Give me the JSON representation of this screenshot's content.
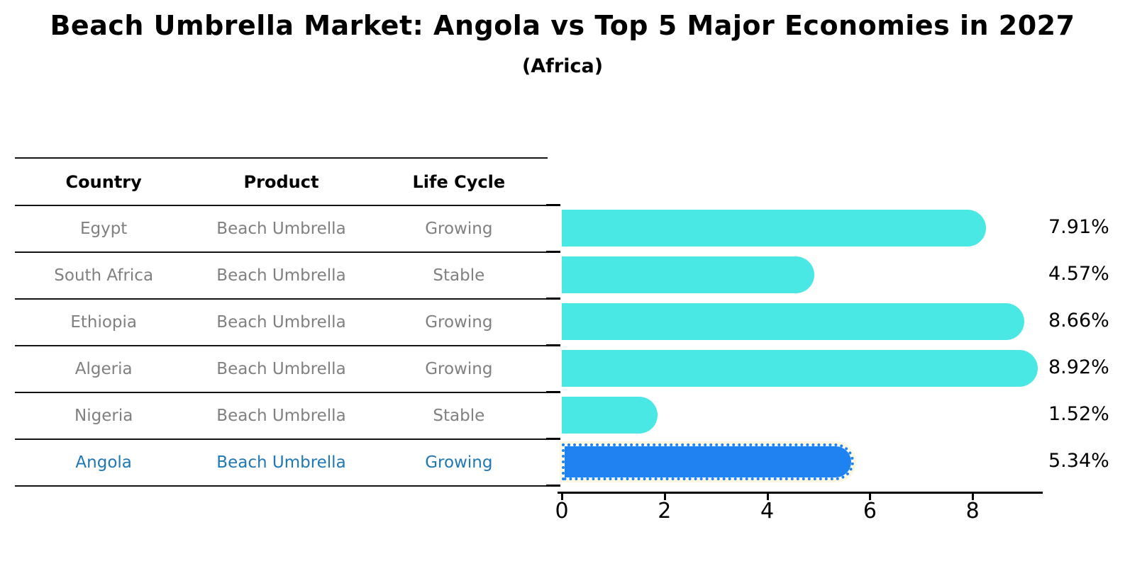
{
  "title": "Beach Umbrella Market: Angola vs Top 5 Major Economies in 2027",
  "subtitle": "(Africa)",
  "table": {
    "headers": [
      "Country",
      "Product",
      "Life Cycle"
    ],
    "rows": [
      {
        "country": "Egypt",
        "product": "Beach Umbrella",
        "life_cycle": "Growing",
        "highlight": false
      },
      {
        "country": "South Africa",
        "product": "Beach Umbrella",
        "life_cycle": "Stable",
        "highlight": false
      },
      {
        "country": "Ethiopia",
        "product": "Beach Umbrella",
        "life_cycle": "Growing",
        "highlight": false
      },
      {
        "country": "Algeria",
        "product": "Beach Umbrella",
        "life_cycle": "Growing",
        "highlight": false
      },
      {
        "country": "Nigeria",
        "product": "Beach Umbrella",
        "life_cycle": "Stable",
        "highlight": false
      },
      {
        "country": "Angola",
        "product": "Beach Umbrella",
        "life_cycle": "Growing",
        "highlight": true
      }
    ]
  },
  "chart_data": {
    "type": "bar",
    "orientation": "horizontal",
    "title": "Beach Umbrella Market: Angola vs Top 5 Major Economies in 2027",
    "subtitle": "(Africa)",
    "categories": [
      "Egypt",
      "South Africa",
      "Ethiopia",
      "Algeria",
      "Nigeria",
      "Angola"
    ],
    "values": [
      7.91,
      4.57,
      8.66,
      8.92,
      1.52,
      5.34
    ],
    "value_labels": [
      "7.91%",
      "4.57%",
      "8.66%",
      "8.92%",
      "1.52%",
      "5.34%"
    ],
    "xlabel": "",
    "ylabel": "",
    "xlim": [
      0,
      9.3
    ],
    "xticks": [
      0,
      2,
      4,
      6,
      8
    ],
    "grid": false,
    "legend": false,
    "highlight_index": 5,
    "colors": {
      "bar": "#4AE8E4",
      "highlight_bar": "#1E82F0",
      "highlight_text": "#1F77B4",
      "table_text": "#808080",
      "axis": "#000000",
      "highlight_glow": "#fdf7e0"
    }
  }
}
